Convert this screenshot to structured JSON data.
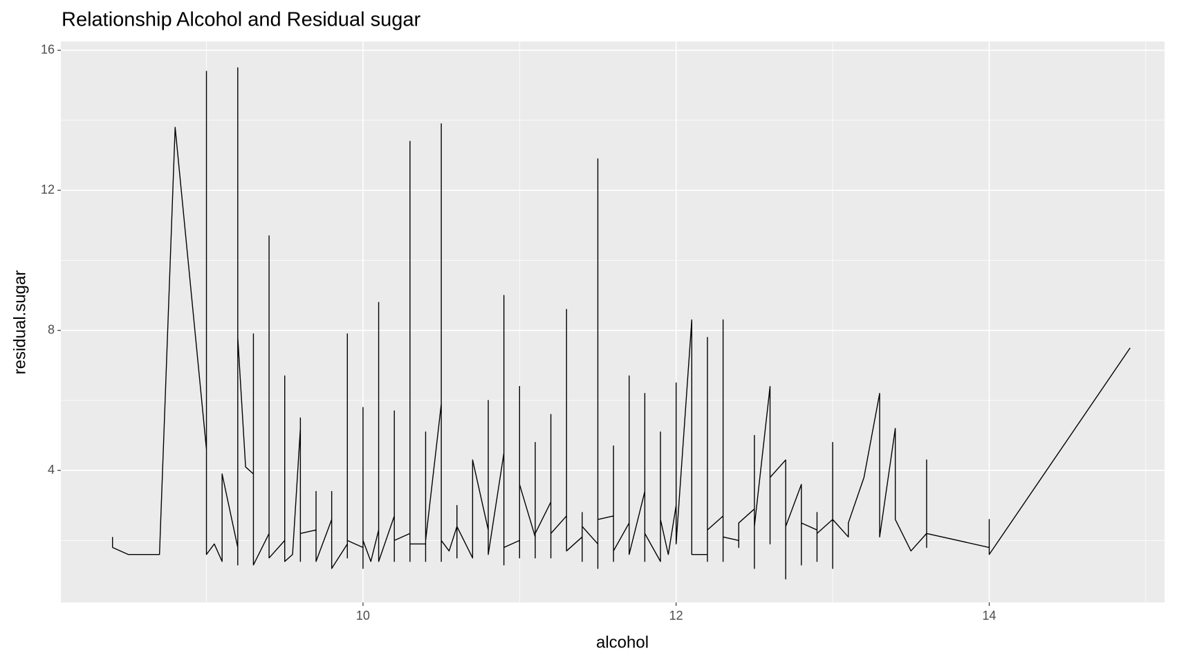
{
  "chart_data": {
    "type": "line",
    "title": "Relationship Alcohol and Residual sugar",
    "x_label": "alcohol",
    "y_label": "residual.sugar",
    "x": [
      8.4,
      8.4,
      8.5,
      8.7,
      8.8,
      9.0,
      9.0,
      9.0,
      9.05,
      9.1,
      9.1,
      9.2,
      9.2,
      9.2,
      9.2,
      9.25,
      9.3,
      9.3,
      9.3,
      9.4,
      9.4,
      9.4,
      9.5,
      9.5,
      9.5,
      9.55,
      9.6,
      9.6,
      9.6,
      9.6,
      9.7,
      9.7,
      9.7,
      9.8,
      9.8,
      9.8,
      9.9,
      9.9,
      9.9,
      9.9,
      10.0,
      10.0,
      10.0,
      10.0,
      10.05,
      10.1,
      10.1,
      10.1,
      10.2,
      10.2,
      10.2,
      10.2,
      10.3,
      10.3,
      10.3,
      10.3,
      10.4,
      10.4,
      10.4,
      10.4,
      10.5,
      10.5,
      10.5,
      10.5,
      10.55,
      10.6,
      10.6,
      10.6,
      10.6,
      10.7,
      10.7,
      10.8,
      10.8,
      10.8,
      10.9,
      10.9,
      10.9,
      10.9,
      11.0,
      11.0,
      11.0,
      11.0,
      11.1,
      11.1,
      11.1,
      11.1,
      11.2,
      11.2,
      11.2,
      11.2,
      11.3,
      11.3,
      11.3,
      11.4,
      11.4,
      11.4,
      11.4,
      11.5,
      11.5,
      11.5,
      11.5,
      11.6,
      11.6,
      11.6,
      11.6,
      11.7,
      11.7,
      11.7,
      11.8,
      11.8,
      11.8,
      11.8,
      11.9,
      11.9,
      11.9,
      11.95,
      12.0,
      12.0,
      12.0,
      12.1,
      12.1,
      12.2,
      12.2,
      12.2,
      12.2,
      12.3,
      12.3,
      12.3,
      12.3,
      12.4,
      12.4,
      12.4,
      12.5,
      12.5,
      12.5,
      12.5,
      12.6,
      12.6,
      12.6,
      12.7,
      12.7,
      12.7,
      12.8,
      12.8,
      12.8,
      12.9,
      12.9,
      12.9,
      12.9,
      13.0,
      13.0,
      13.0,
      13.0,
      13.1,
      13.1,
      13.2,
      13.3,
      13.3,
      13.4,
      13.4,
      13.5,
      13.6,
      13.6,
      13.6,
      13.6,
      14.0,
      14.0,
      14.0,
      14.9
    ],
    "values": [
      2.1,
      1.8,
      1.6,
      1.6,
      13.8,
      4.6,
      15.4,
      1.6,
      1.9,
      1.4,
      3.9,
      1.8,
      1.3,
      15.5,
      7.8,
      4.1,
      3.9,
      7.9,
      1.3,
      2.2,
      10.7,
      1.5,
      2.0,
      6.7,
      1.4,
      1.6,
      5.2,
      5.5,
      1.4,
      2.2,
      2.3,
      3.4,
      1.4,
      2.6,
      3.4,
      1.2,
      1.9,
      7.9,
      1.5,
      2.0,
      1.8,
      1.2,
      5.8,
      2.0,
      1.4,
      2.3,
      8.8,
      1.4,
      2.7,
      5.7,
      1.4,
      2.0,
      2.2,
      13.4,
      1.4,
      1.9,
      1.9,
      5.1,
      1.4,
      2.0,
      5.9,
      13.9,
      1.4,
      2.0,
      1.7,
      2.4,
      3.0,
      1.5,
      2.4,
      1.5,
      4.3,
      2.3,
      6.0,
      1.6,
      4.5,
      9.0,
      1.3,
      1.8,
      2.0,
      6.4,
      1.5,
      3.6,
      2.1,
      1.5,
      4.8,
      2.2,
      3.1,
      5.6,
      1.5,
      2.2,
      2.7,
      8.6,
      1.7,
      2.1,
      2.8,
      1.4,
      2.4,
      1.9,
      12.9,
      1.2,
      2.6,
      2.7,
      4.7,
      1.4,
      1.7,
      2.5,
      6.7,
      1.6,
      3.4,
      6.2,
      1.4,
      2.2,
      1.4,
      5.1,
      2.6,
      1.6,
      3.0,
      6.5,
      1.9,
      8.3,
      1.6,
      1.6,
      7.8,
      1.4,
      2.3,
      2.7,
      8.3,
      1.4,
      2.1,
      2.0,
      1.8,
      2.5,
      2.9,
      5.0,
      1.2,
      2.4,
      6.4,
      1.9,
      3.8,
      4.3,
      0.9,
      2.4,
      3.6,
      1.3,
      2.5,
      2.3,
      2.8,
      1.4,
      2.2,
      2.6,
      4.8,
      1.2,
      2.6,
      2.1,
      2.5,
      3.8,
      6.2,
      2.1,
      5.2,
      2.6,
      1.7,
      2.2,
      4.3,
      1.8,
      2.2,
      1.8,
      2.6,
      1.6,
      7.5
    ],
    "color": "#000000",
    "xlim": [
      8.07,
      15.12
    ],
    "xticks": [
      10,
      12,
      14
    ],
    "ylim": [
      0.23,
      16.25
    ],
    "yticks": [
      4,
      8,
      12,
      16
    ],
    "grid": true
  }
}
